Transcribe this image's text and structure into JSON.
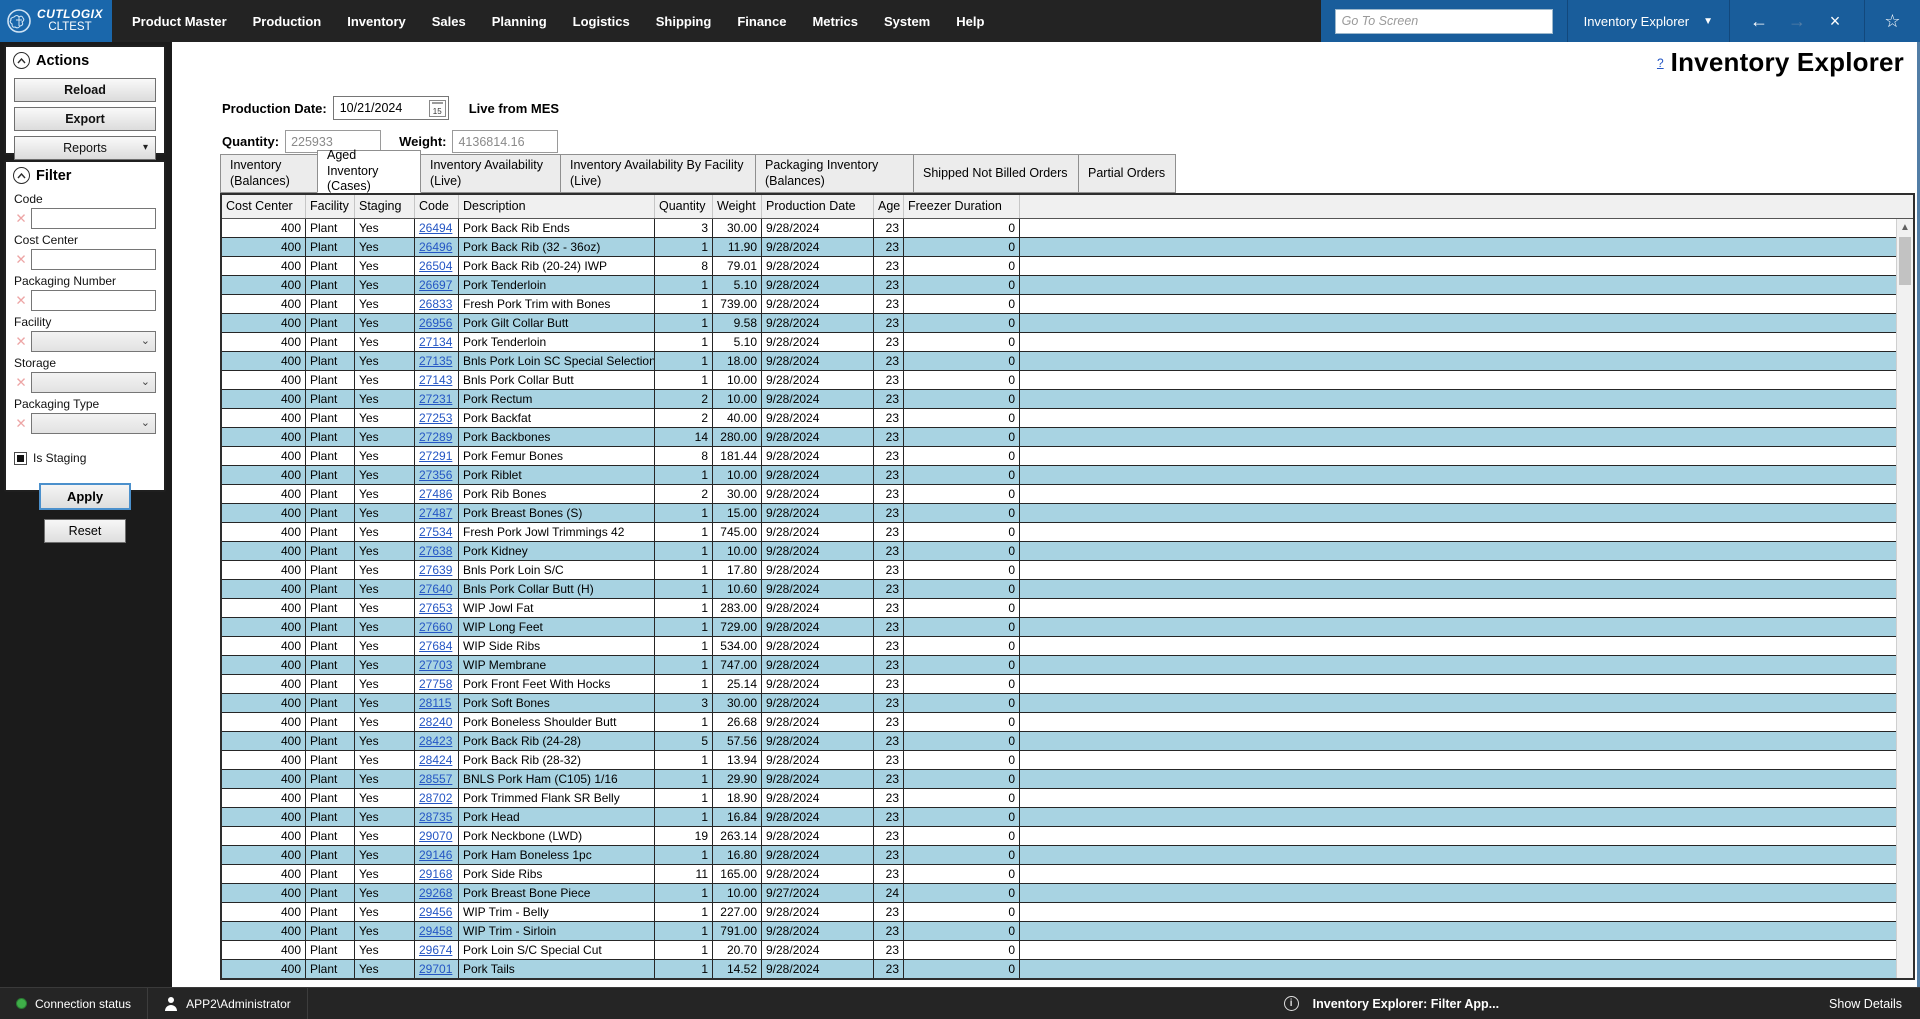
{
  "colors": {
    "logo_blue": "#1a67ab",
    "bar_blue": "#195d9b",
    "topbar_dark": "#232323",
    "row_alt_blue": "#a8d3e2",
    "link_blue": "#2456c4",
    "connection_green": "#3fae49"
  },
  "topbar": {
    "logo": {
      "brand": "CUTLOGIX",
      "env": "CLTEST"
    },
    "menu": [
      "Product Master",
      "Production",
      "Inventory",
      "Sales",
      "Planning",
      "Logistics",
      "Shipping",
      "Finance",
      "Metrics",
      "System",
      "Help"
    ],
    "goto_placeholder": "Go To Screen",
    "screen_selector": "Inventory Explorer",
    "screen_caret": "▼",
    "back_arrow": "←",
    "forward_arrow": "→",
    "close_glyph": "×",
    "favorite_glyph": "☆"
  },
  "actions_panel": {
    "title": "Actions",
    "reload_label": "Reload",
    "export_label": "Export",
    "reports_label": "Reports",
    "reports_caret": "▾"
  },
  "filter_panel": {
    "title": "Filter",
    "clear_glyph": "✕",
    "select_caret": "⌄",
    "fields": [
      {
        "label": "Code",
        "type": "text"
      },
      {
        "label": "Cost Center",
        "type": "text"
      },
      {
        "label": "Packaging Number",
        "type": "text"
      },
      {
        "label": "Facility",
        "type": "select"
      },
      {
        "label": "Storage",
        "type": "select"
      },
      {
        "label": "Packaging Type",
        "type": "select"
      }
    ],
    "is_staging_label": "Is Staging",
    "apply_label": "Apply",
    "reset_label": "Reset"
  },
  "header": {
    "help": "?",
    "title": "Inventory Explorer",
    "production_date_label": "Production Date:",
    "production_date": "10/21/2024",
    "calendar_day": "15",
    "live_label": "Live from MES",
    "quantity_label": "Quantity:",
    "quantity": "225933",
    "weight_label": "Weight:",
    "weight": "4136814.16"
  },
  "tabs": {
    "active_index": 1,
    "items": [
      "Inventory (Balances)",
      "Aged Inventory (Cases)",
      "Inventory Availability (Live)",
      "Inventory Availability By Facility (Live)",
      "Packaging Inventory (Balances)",
      "Shipped Not Billed Orders",
      "Partial Orders"
    ]
  },
  "table": {
    "columns": [
      "Cost Center",
      "Facility",
      "Staging",
      "Code",
      "Description",
      "Quantity",
      "Weight",
      "Production Date",
      "Age",
      "Freezer Duration"
    ],
    "rows": [
      [
        "400",
        "Plant",
        "Yes",
        "26494",
        "Pork Back Rib Ends",
        "3",
        "30.00",
        "9/28/2024",
        "23",
        "0"
      ],
      [
        "400",
        "Plant",
        "Yes",
        "26496",
        "Pork Back Rib (32 - 36oz)",
        "1",
        "11.90",
        "9/28/2024",
        "23",
        "0"
      ],
      [
        "400",
        "Plant",
        "Yes",
        "26504",
        "Pork Back Rib (20-24) IWP",
        "8",
        "79.01",
        "9/28/2024",
        "23",
        "0"
      ],
      [
        "400",
        "Plant",
        "Yes",
        "26697",
        "Pork Tenderloin",
        "1",
        "5.10",
        "9/28/2024",
        "23",
        "0"
      ],
      [
        "400",
        "Plant",
        "Yes",
        "26833",
        "Fresh Pork Trim with Bones",
        "1",
        "739.00",
        "9/28/2024",
        "23",
        "0"
      ],
      [
        "400",
        "Plant",
        "Yes",
        "26956",
        "Pork Gilt Collar Butt",
        "1",
        "9.58",
        "9/28/2024",
        "23",
        "0"
      ],
      [
        "400",
        "Plant",
        "Yes",
        "27134",
        "Pork Tenderloin",
        "1",
        "5.10",
        "9/28/2024",
        "23",
        "0"
      ],
      [
        "400",
        "Plant",
        "Yes",
        "27135",
        "Bnls Pork Loin SC Special Selection",
        "1",
        "18.00",
        "9/28/2024",
        "23",
        "0"
      ],
      [
        "400",
        "Plant",
        "Yes",
        "27143",
        "Bnls Pork Collar Butt",
        "1",
        "10.00",
        "9/28/2024",
        "23",
        "0"
      ],
      [
        "400",
        "Plant",
        "Yes",
        "27231",
        "Pork Rectum",
        "2",
        "10.00",
        "9/28/2024",
        "23",
        "0"
      ],
      [
        "400",
        "Plant",
        "Yes",
        "27253",
        "Pork Backfat",
        "2",
        "40.00",
        "9/28/2024",
        "23",
        "0"
      ],
      [
        "400",
        "Plant",
        "Yes",
        "27289",
        "Pork Backbones",
        "14",
        "280.00",
        "9/28/2024",
        "23",
        "0"
      ],
      [
        "400",
        "Plant",
        "Yes",
        "27291",
        "Pork Femur Bones",
        "8",
        "181.44",
        "9/28/2024",
        "23",
        "0"
      ],
      [
        "400",
        "Plant",
        "Yes",
        "27356",
        "Pork Riblet",
        "1",
        "10.00",
        "9/28/2024",
        "23",
        "0"
      ],
      [
        "400",
        "Plant",
        "Yes",
        "27486",
        "Pork Rib Bones",
        "2",
        "30.00",
        "9/28/2024",
        "23",
        "0"
      ],
      [
        "400",
        "Plant",
        "Yes",
        "27487",
        "Pork Breast Bones (S)",
        "1",
        "15.00",
        "9/28/2024",
        "23",
        "0"
      ],
      [
        "400",
        "Plant",
        "Yes",
        "27534",
        "Fresh Pork Jowl Trimmings 42",
        "1",
        "745.00",
        "9/28/2024",
        "23",
        "0"
      ],
      [
        "400",
        "Plant",
        "Yes",
        "27638",
        "Pork Kidney",
        "1",
        "10.00",
        "9/28/2024",
        "23",
        "0"
      ],
      [
        "400",
        "Plant",
        "Yes",
        "27639",
        "Bnls Pork Loin S/C",
        "1",
        "17.80",
        "9/28/2024",
        "23",
        "0"
      ],
      [
        "400",
        "Plant",
        "Yes",
        "27640",
        "Bnls Pork Collar Butt (H)",
        "1",
        "10.60",
        "9/28/2024",
        "23",
        "0"
      ],
      [
        "400",
        "Plant",
        "Yes",
        "27653",
        "WIP Jowl Fat",
        "1",
        "283.00",
        "9/28/2024",
        "23",
        "0"
      ],
      [
        "400",
        "Plant",
        "Yes",
        "27660",
        "WIP Long Feet",
        "1",
        "729.00",
        "9/28/2024",
        "23",
        "0"
      ],
      [
        "400",
        "Plant",
        "Yes",
        "27684",
        "WIP Side Ribs",
        "1",
        "534.00",
        "9/28/2024",
        "23",
        "0"
      ],
      [
        "400",
        "Plant",
        "Yes",
        "27703",
        "WIP Membrane",
        "1",
        "747.00",
        "9/28/2024",
        "23",
        "0"
      ],
      [
        "400",
        "Plant",
        "Yes",
        "27758",
        "Pork Front Feet With Hocks",
        "1",
        "25.14",
        "9/28/2024",
        "23",
        "0"
      ],
      [
        "400",
        "Plant",
        "Yes",
        "28115",
        "Pork Soft Bones",
        "3",
        "30.00",
        "9/28/2024",
        "23",
        "0"
      ],
      [
        "400",
        "Plant",
        "Yes",
        "28240",
        "Pork Boneless Shoulder Butt",
        "1",
        "26.68",
        "9/28/2024",
        "23",
        "0"
      ],
      [
        "400",
        "Plant",
        "Yes",
        "28423",
        "Pork Back Rib (24-28)",
        "5",
        "57.56",
        "9/28/2024",
        "23",
        "0"
      ],
      [
        "400",
        "Plant",
        "Yes",
        "28424",
        "Pork Back Rib (28-32)",
        "1",
        "13.94",
        "9/28/2024",
        "23",
        "0"
      ],
      [
        "400",
        "Plant",
        "Yes",
        "28557",
        "BNLS Pork Ham (C105) 1/16",
        "1",
        "29.90",
        "9/28/2024",
        "23",
        "0"
      ],
      [
        "400",
        "Plant",
        "Yes",
        "28702",
        "Pork Trimmed Flank SR Belly",
        "1",
        "18.90",
        "9/28/2024",
        "23",
        "0"
      ],
      [
        "400",
        "Plant",
        "Yes",
        "28735",
        "Pork Head",
        "1",
        "16.84",
        "9/28/2024",
        "23",
        "0"
      ],
      [
        "400",
        "Plant",
        "Yes",
        "29070",
        "Pork Neckbone (LWD)",
        "19",
        "263.14",
        "9/28/2024",
        "23",
        "0"
      ],
      [
        "400",
        "Plant",
        "Yes",
        "29146",
        "Pork Ham Boneless 1pc",
        "1",
        "16.80",
        "9/28/2024",
        "23",
        "0"
      ],
      [
        "400",
        "Plant",
        "Yes",
        "29168",
        "Pork Side Ribs",
        "11",
        "165.00",
        "9/28/2024",
        "23",
        "0"
      ],
      [
        "400",
        "Plant",
        "Yes",
        "29268",
        "Pork Breast Bone Piece",
        "1",
        "10.00",
        "9/27/2024",
        "24",
        "0"
      ],
      [
        "400",
        "Plant",
        "Yes",
        "29456",
        "WIP Trim - Belly",
        "1",
        "227.00",
        "9/28/2024",
        "23",
        "0"
      ],
      [
        "400",
        "Plant",
        "Yes",
        "29458",
        "WIP Trim - Sirloin",
        "1",
        "791.00",
        "9/28/2024",
        "23",
        "0"
      ],
      [
        "400",
        "Plant",
        "Yes",
        "29674",
        "Pork Loin S/C Special Cut",
        "1",
        "20.70",
        "9/28/2024",
        "23",
        "0"
      ],
      [
        "400",
        "Plant",
        "Yes",
        "29701",
        "Pork Tails",
        "1",
        "14.52",
        "9/28/2024",
        "23",
        "0"
      ]
    ]
  },
  "statusbar": {
    "connection": "Connection status",
    "user": "APP2\\Administrator",
    "message": "Inventory Explorer: Filter App...",
    "show_details": "Show Details"
  }
}
